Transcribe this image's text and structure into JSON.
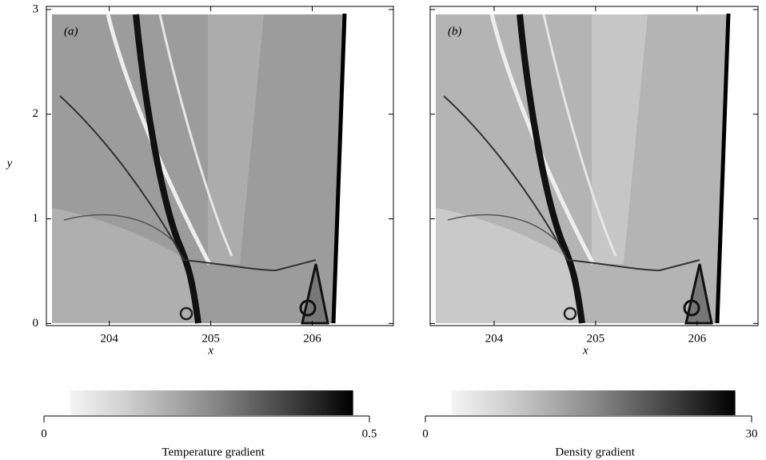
{
  "chart_data": [
    {
      "type": "field",
      "panel_label": "(a)",
      "xlabel": "x",
      "ylabel": "y",
      "xlim": [
        203.38,
        206.8
      ],
      "ylim": [
        -0.02,
        3.03
      ],
      "xticks": [
        204,
        205,
        206
      ],
      "yticks": [
        0,
        1,
        2,
        3
      ],
      "colorbar": {
        "label": "Temperature gradient",
        "lim": [
          0,
          0.5
        ],
        "ticks": [
          0,
          0.5
        ]
      }
    },
    {
      "type": "field",
      "panel_label": "(b)",
      "xlabel": "x",
      "xlim": [
        203.37,
        206.6
      ],
      "ylim": [
        -0.02,
        3.03
      ],
      "xticks": [
        204,
        205,
        206
      ],
      "yticks": [
        0,
        1,
        2,
        3
      ],
      "colorbar": {
        "label": "Density gradient",
        "lim": [
          0,
          30
        ],
        "ticks": [
          0,
          30
        ]
      }
    }
  ]
}
